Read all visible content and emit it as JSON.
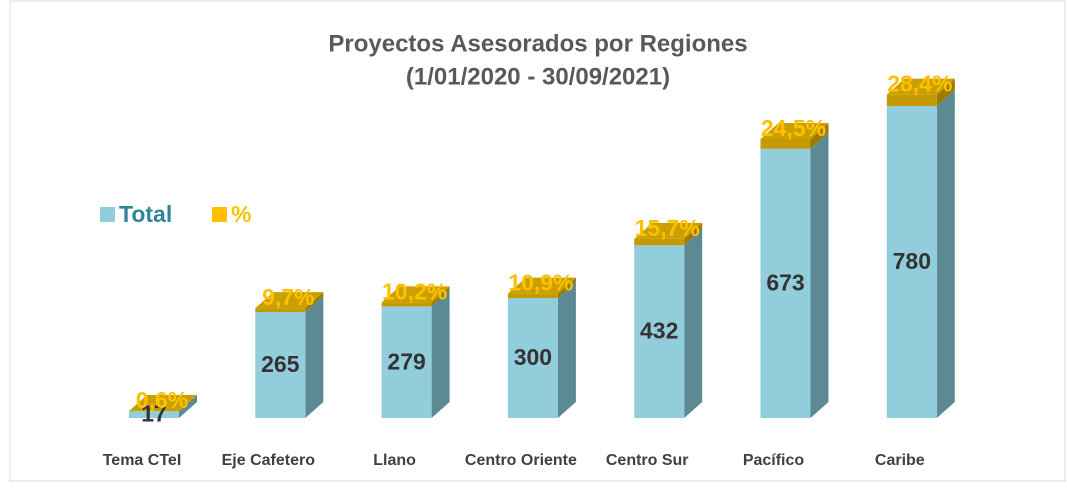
{
  "chart_data": {
    "type": "bar3d_stacked",
    "title": "Proyectos Asesorados por Regiones",
    "subtitle": "(1/01/2020 - 30/09/2021)",
    "categories": [
      "Tema CTeI",
      "Eje Cafetero",
      "Llano",
      "Centro Oriente",
      "Centro Sur",
      "Pacífico",
      "Caribe"
    ],
    "series": [
      {
        "name": "Total",
        "color": "#92cddc",
        "values": [
          17,
          265,
          279,
          300,
          432,
          673,
          780
        ]
      },
      {
        "name": "%",
        "color": "#ffc000",
        "values": [
          0.6,
          9.7,
          10.2,
          10.9,
          15.7,
          24.5,
          28.4
        ],
        "value_labels": [
          "0,6%",
          "9,7%",
          "10,2%",
          "10,9%",
          "15,7%",
          "24,5%",
          "28,4%"
        ]
      }
    ],
    "ylim": [
      0,
      850
    ],
    "legend": "left"
  }
}
